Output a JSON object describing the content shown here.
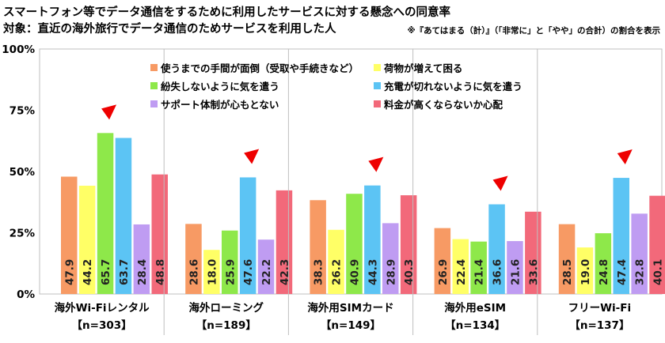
{
  "title": "スマートフォン等でデータ通信をするために利用したサービスに対する懸念への同意率",
  "subtitle": "対象：直近の海外旅行でデータ通信のためサービスを利用した人",
  "note": "※『あてはまる（計）』（「非常に」と「やや」の合計）の割合を表示",
  "chart_data": {
    "type": "bar",
    "ylim": [
      0,
      100
    ],
    "yticks": [
      "0%",
      "25%",
      "50%",
      "75%",
      "100%"
    ],
    "ytick_values": [
      0,
      25,
      50,
      75,
      100
    ],
    "legend_position": "top-right",
    "categories": [
      {
        "name": "海外Wi-Fiレンタル",
        "n": "【n=303】"
      },
      {
        "name": "海外ローミング",
        "n": "【n=189】"
      },
      {
        "name": "海外用SIMカード",
        "n": "【n=149】"
      },
      {
        "name": "海外用eSIM",
        "n": "【n=134】"
      },
      {
        "name": "フリーWi-Fi",
        "n": "【n=137】"
      }
    ],
    "series": [
      {
        "name": "使うまでの手間が面倒（受取や手続きなど）",
        "color": "#f79a64",
        "values": [
          47.9,
          28.6,
          38.3,
          26.9,
          28.5
        ]
      },
      {
        "name": "荷物が増えて困る",
        "color": "#ffff66",
        "values": [
          44.2,
          18.0,
          26.2,
          22.4,
          19.0
        ]
      },
      {
        "name": "紛失しないように気を遣う",
        "color": "#8ee84a",
        "values": [
          65.7,
          25.9,
          40.9,
          21.4,
          24.8
        ]
      },
      {
        "name": "充電が切れないように気を遣う",
        "color": "#5cc4f4",
        "values": [
          63.7,
          47.6,
          44.3,
          36.6,
          47.4
        ]
      },
      {
        "name": "サポート体制が心もとない",
        "color": "#bf9cf2",
        "values": [
          28.4,
          22.2,
          28.9,
          21.6,
          32.8
        ]
      },
      {
        "name": "料金が高くならないか心配",
        "color": "#f2697a",
        "values": [
          48.8,
          42.3,
          40.3,
          33.6,
          40.1
        ]
      }
    ],
    "highlight": [
      2,
      3,
      3,
      3,
      3
    ],
    "highlight_color": "#ee0000"
  }
}
